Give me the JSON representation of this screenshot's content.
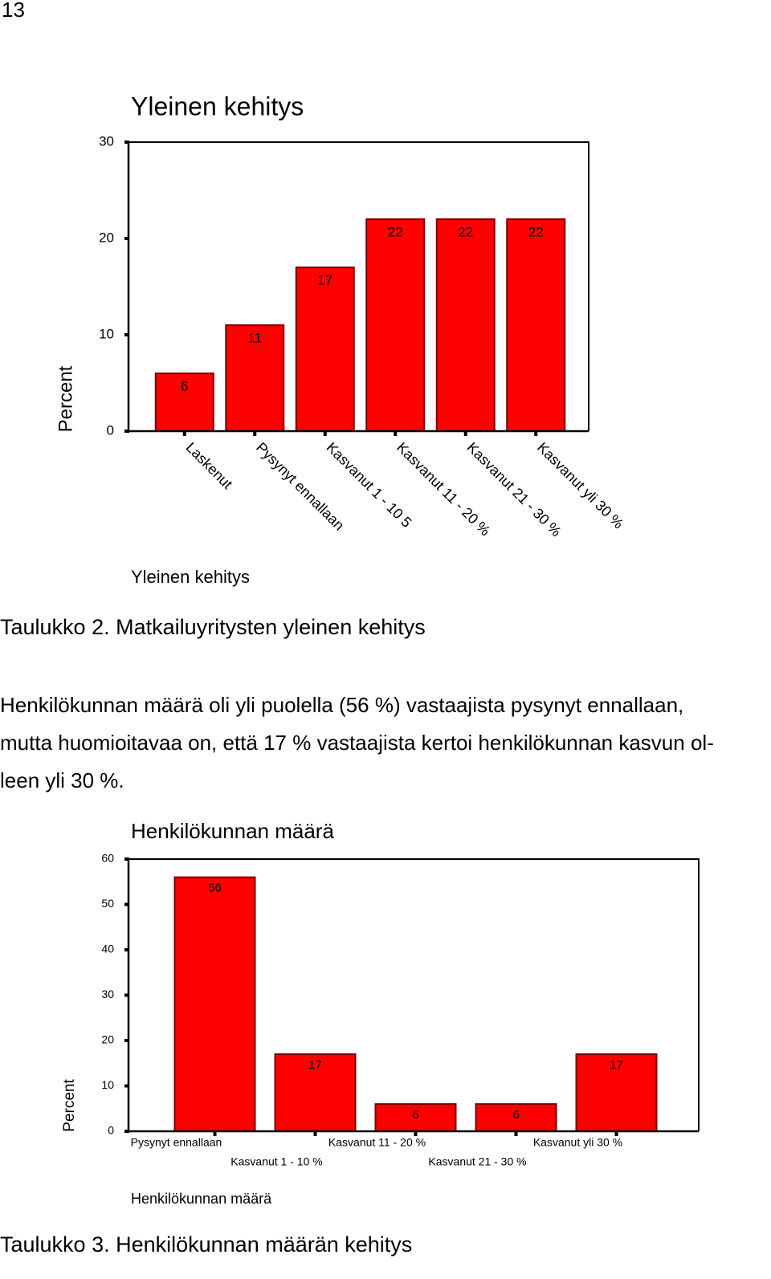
{
  "page_number": "13",
  "chart_data": [
    {
      "type": "bar",
      "title": "Yleinen kehitys",
      "y_label": "Percent",
      "x_label": "Yleinen kehitys",
      "categories": [
        "Laskenut",
        "Pysynyt ennallaan",
        "Kasvanut 1 - 10 5",
        "Kasvanut 11 - 20 %",
        "Kasvanut 21 - 30 %",
        "Kasvanut yli 30 %"
      ],
      "values": [
        6,
        11,
        17,
        22,
        22,
        22
      ],
      "color": "#ff0000",
      "ylim": [
        0,
        30
      ],
      "yticks": [
        0,
        10,
        20,
        30
      ]
    },
    {
      "type": "bar",
      "title": "Henkilökunnan määrä",
      "y_label": "Percent",
      "x_label": "Henkilökunnan määrä",
      "categories": [
        "Pysynyt ennallaan",
        "Kasvanut 1 - 10 %",
        "Kasvanut 11 - 20 %",
        "Kasvanut 21 - 30 %",
        "Kasvanut yli 30 %"
      ],
      "values": [
        56,
        17,
        6,
        6,
        17
      ],
      "color": "#ff0000",
      "ylim": [
        0,
        60
      ],
      "yticks": [
        0,
        10,
        20,
        30,
        40,
        50,
        60
      ]
    }
  ],
  "captions": [
    "Taulukko 2. Matkailuyritysten yleinen kehitys",
    "Taulukko 3. Henkilökunnan määrän kehitys"
  ],
  "paragraph": [
    "Henkilökunnan määrä oli yli puolella (56 %) vastaajista pysynyt ennallaan,",
    "mutta huomioitavaa on, että 17 % vastaajista kertoi henkilökunnan kasvun ol-",
    "leen yli 30 %."
  ]
}
